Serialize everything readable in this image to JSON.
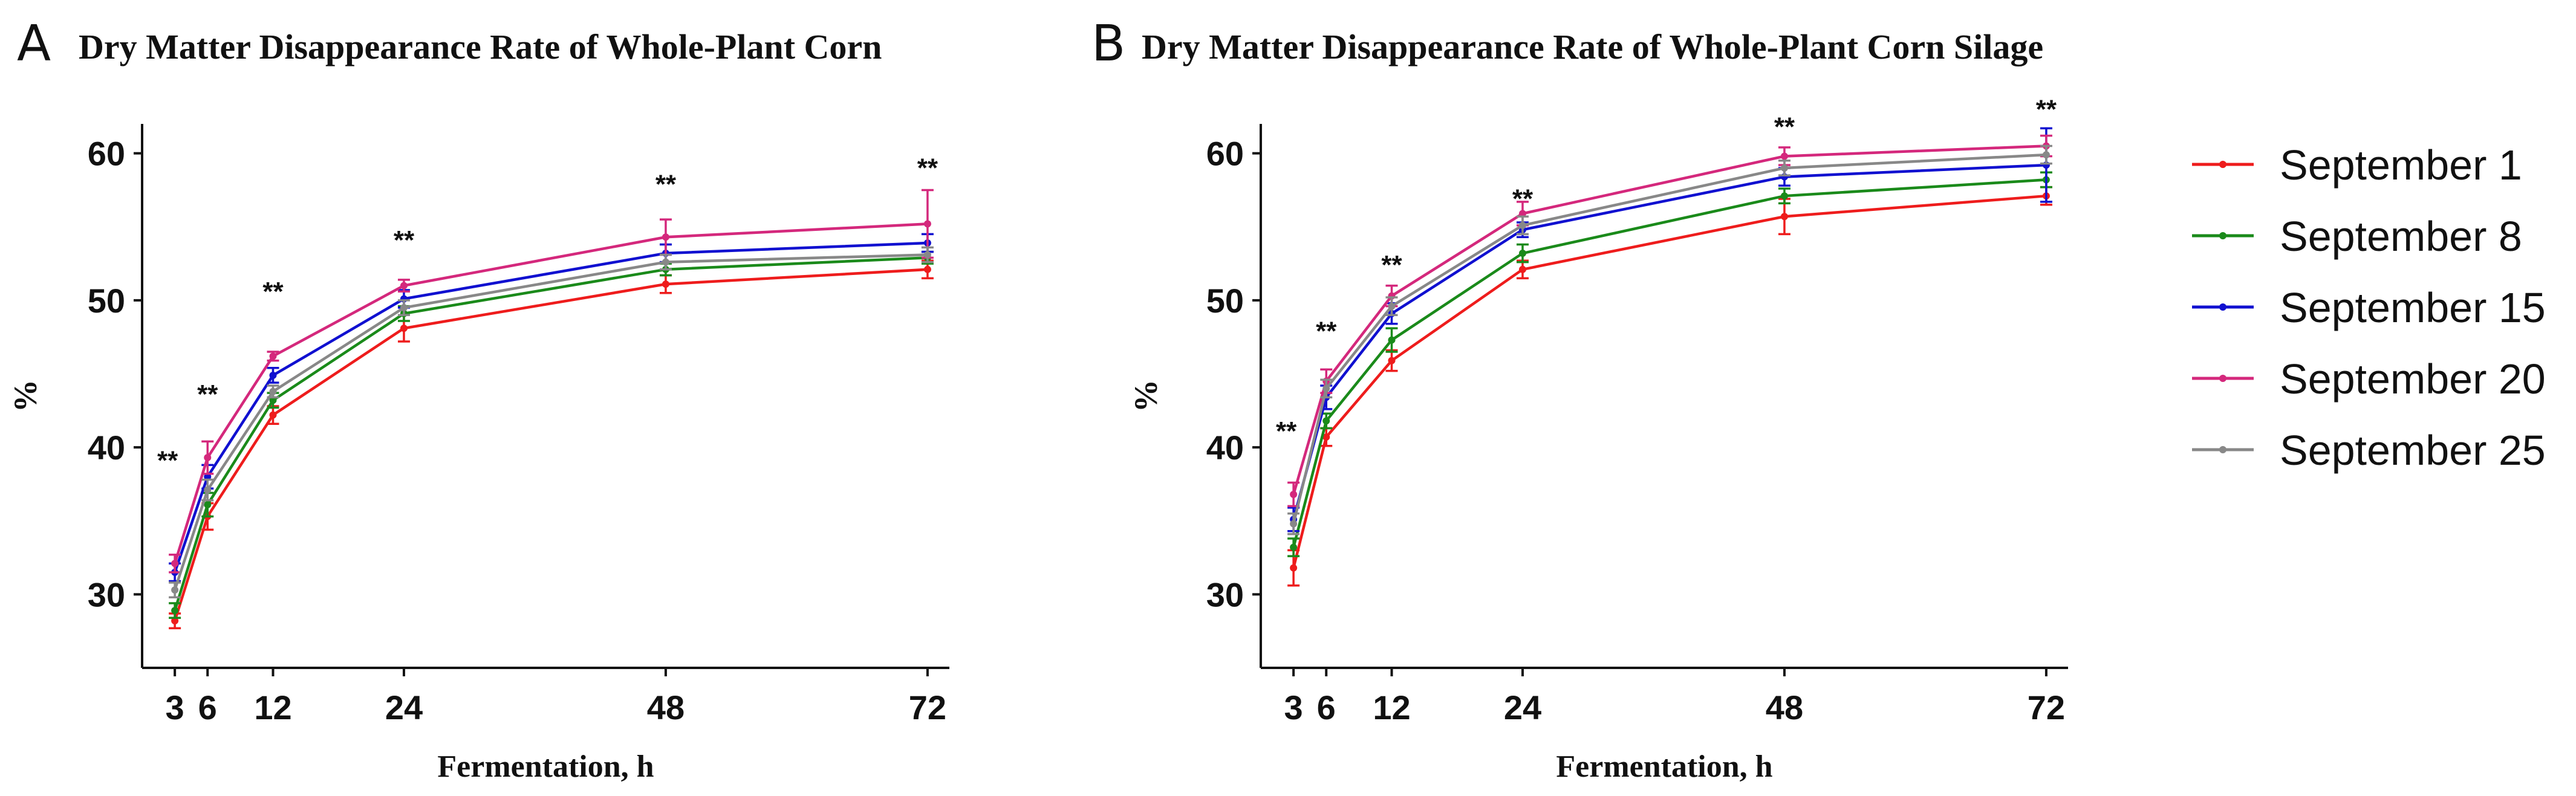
{
  "chart_data": [
    {
      "type": "line",
      "panel_letter": "A",
      "title": "Dry Matter Disappearance Rate of Whole-Plant Corn",
      "xlabel": "Fermentation, h",
      "ylabel": "%",
      "x": [
        3,
        6,
        12,
        24,
        48,
        72
      ],
      "xlim": [
        0,
        74
      ],
      "ylim": [
        25,
        62
      ],
      "yticks": [
        30,
        40,
        50,
        60
      ],
      "significance": [
        "**",
        "**",
        "**",
        "**",
        "**",
        "**"
      ],
      "significance_y": [
        38.5,
        43.0,
        50.0,
        53.5,
        57.3,
        58.4
      ],
      "series": [
        {
          "name": "September 1",
          "color": "#ee1c1c",
          "values": [
            28.2,
            35.3,
            42.2,
            48.1,
            51.1,
            52.1
          ],
          "errors": [
            0.5,
            0.9,
            0.6,
            0.9,
            0.6,
            0.6
          ]
        },
        {
          "name": "September 8",
          "color": "#1a8a1a",
          "values": [
            28.9,
            36.1,
            43.2,
            49.1,
            52.1,
            52.9
          ],
          "errors": [
            0.5,
            0.8,
            0.5,
            0.5,
            0.4,
            0.4
          ]
        },
        {
          "name": "September 15",
          "color": "#1010d0",
          "values": [
            31.5,
            38.0,
            44.9,
            50.1,
            53.2,
            53.9
          ],
          "errors": [
            0.6,
            0.8,
            0.5,
            0.6,
            0.6,
            0.6
          ]
        },
        {
          "name": "September 20",
          "color": "#d4287c",
          "values": [
            32.1,
            39.3,
            46.2,
            51.0,
            54.3,
            55.2
          ],
          "errors": [
            0.6,
            1.1,
            0.3,
            0.4,
            1.2,
            2.3
          ]
        },
        {
          "name": "September 25",
          "color": "#888888",
          "values": [
            30.3,
            37.1,
            43.8,
            49.5,
            52.6,
            53.1
          ],
          "errors": [
            0.5,
            0.7,
            0.4,
            0.5,
            0.5,
            0.5
          ]
        }
      ]
    },
    {
      "type": "line",
      "panel_letter": "B",
      "title": "Dry Matter Disappearance Rate of Whole-Plant Corn Silage",
      "xlabel": "Fermentation, h",
      "ylabel": "%",
      "x": [
        3,
        6,
        12,
        24,
        48,
        72
      ],
      "xlim": [
        0,
        74
      ],
      "ylim": [
        25,
        62
      ],
      "yticks": [
        30,
        40,
        50,
        60
      ],
      "significance": [
        "**",
        "**",
        "**",
        "**",
        "**",
        "**"
      ],
      "significance_y": [
        40.5,
        47.3,
        51.8,
        56.3,
        61.2,
        62.4
      ],
      "series": [
        {
          "name": "September 1",
          "color": "#ee1c1c",
          "values": [
            31.8,
            40.7,
            45.9,
            52.1,
            55.7,
            57.1
          ],
          "errors": [
            1.2,
            0.6,
            0.7,
            0.6,
            1.2,
            0.6
          ]
        },
        {
          "name": "September 8",
          "color": "#1a8a1a",
          "values": [
            33.2,
            41.8,
            47.3,
            53.2,
            57.1,
            58.2
          ],
          "errors": [
            0.6,
            0.5,
            0.8,
            0.6,
            0.5,
            0.5
          ]
        },
        {
          "name": "September 15",
          "color": "#1010d0",
          "values": [
            35.1,
            43.4,
            49.1,
            54.8,
            58.4,
            59.2
          ],
          "errors": [
            0.8,
            0.8,
            0.7,
            0.5,
            0.6,
            2.5
          ]
        },
        {
          "name": "September 20",
          "color": "#d4287c",
          "values": [
            36.8,
            44.5,
            50.3,
            55.9,
            59.8,
            60.5
          ],
          "errors": [
            0.8,
            0.8,
            0.7,
            0.8,
            0.6,
            0.7
          ]
        },
        {
          "name": "September 25",
          "color": "#888888",
          "values": [
            34.8,
            44.0,
            49.6,
            55.1,
            59.0,
            59.9
          ],
          "errors": [
            0.7,
            0.6,
            0.6,
            0.6,
            0.5,
            0.6
          ]
        }
      ]
    }
  ],
  "legend": {
    "placement": "right",
    "items": [
      {
        "label": "September 1",
        "color": "#ee1c1c"
      },
      {
        "label": "September 8",
        "color": "#1a8a1a"
      },
      {
        "label": "September 15",
        "color": "#1010d0"
      },
      {
        "label": "September 20",
        "color": "#d4287c"
      },
      {
        "label": "September 25",
        "color": "#888888"
      }
    ]
  }
}
